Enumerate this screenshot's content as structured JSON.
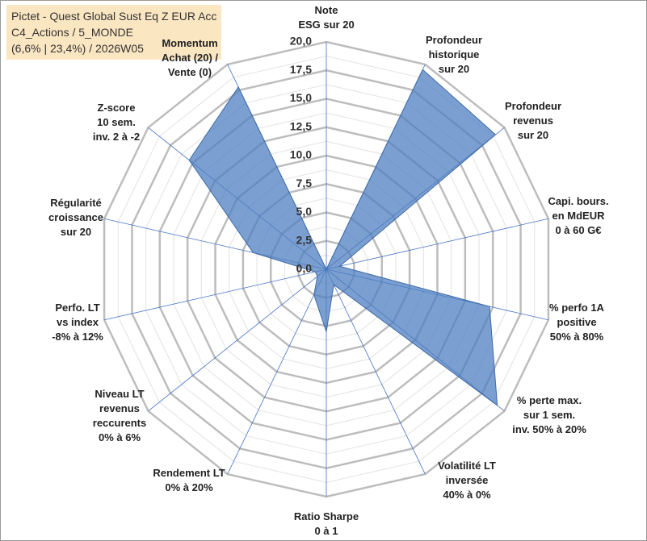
{
  "chart_data": {
    "type": "radar",
    "title": "Pictet - Quest Global Sust Eq Z EUR Acc\nC4_Actions / 5_MONDE\n(6,6% | 23,4%) / 2026W05",
    "categories": [
      "Note\nESG sur 20",
      "Profondeur\nhistorique\nsur 20",
      "Profondeur\nrevenus\nsur 20",
      "Capi. bours.\nen MdEUR\n0 à 60 G€",
      "% perfo 1A\npositive\n50% à 80%",
      "% perte max.\nsur 1 sem.\ninv. 50% à 20%",
      "Volatilité LT\ninversée\n40% à 0%",
      "Ratio Sharpe\n0 à 1",
      "Rendement LT\n0% à 20%",
      "Niveau LT\nrevenus\nreccurents\n0% à 6%",
      "Perfo. LT\nvs index\n-8% à 12%",
      "Régularité\ncroissance\nsur 20",
      "Z-score\n10 sem.\ninv. 2 à -2",
      "Momentum\nAchat (20) /\nVente (0)"
    ],
    "values": [
      0,
      19.5,
      19,
      1.2,
      14.7,
      19.2,
      1.5,
      5.5,
      2.5,
      1,
      1,
      6.6,
      15.4,
      17.8
    ],
    "color": "#4f7fc0",
    "ylim": [
      0,
      20
    ],
    "yticks": [
      {
        "value": 0,
        "label": "0,0"
      },
      {
        "value": 2.5,
        "label": "2,5"
      },
      {
        "value": 5,
        "label": "5,0"
      },
      {
        "value": 7.5,
        "label": "7,5"
      },
      {
        "value": 10,
        "label": "10,0"
      },
      {
        "value": 12.5,
        "label": "12,5"
      },
      {
        "value": 15,
        "label": "15,0"
      },
      {
        "value": 17.5,
        "label": "17,5"
      },
      {
        "value": 20,
        "label": "20,0"
      }
    ],
    "grid": true
  }
}
